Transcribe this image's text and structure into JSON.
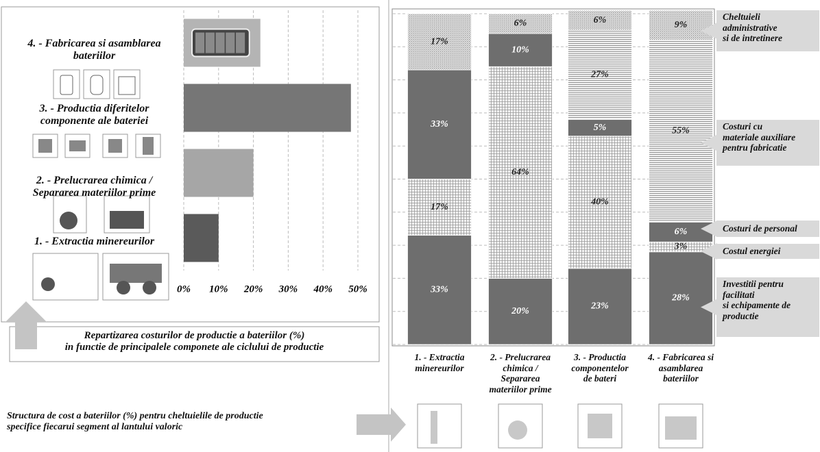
{
  "chart_data": [
    {
      "type": "hbar",
      "categories": [
        "1. - Extractia minereurilor",
        "2. - Prelucrarea chimica /\nSepararea materiilor prime",
        "3. - Productia diferitelor\ncomponente ale bateriei",
        "4. - Fabricarea si asamblarea\nbateriilor"
      ],
      "values": [
        10,
        20,
        48,
        22
      ],
      "colors": [
        "#5a5a5a",
        "#a6a6a6",
        "#767676",
        "#b4b4b4"
      ],
      "xlim": [
        0,
        50
      ],
      "xticks": [
        {
          "value": 0,
          "label": "0%"
        },
        {
          "value": 10,
          "label": "10%"
        },
        {
          "value": 20,
          "label": "20%"
        },
        {
          "value": 30,
          "label": "30%"
        },
        {
          "value": 40,
          "label": "40%"
        },
        {
          "value": 50,
          "label": "50%"
        }
      ],
      "grid": true,
      "caption": "Repartizarea costurilor de productie a bateriilor (%)\nin functie de principalele componete ale ciclului de productie"
    },
    {
      "type": "stacked_bar",
      "categories": [
        "1. - Extractia\nminereurilor",
        "2. - Prelucrarea\nchimica /\nSepararea\nmateriilor prime",
        "3. - Productia\ncomponentelor\nde bateri",
        "4. - Fabricarea si\nasamblarea\nbateriilor"
      ],
      "series": [
        {
          "name": "Investitii pentru\nfacilitati\nsi echipamente de\nproductie",
          "color": "#6e6e6e",
          "pattern": "solid",
          "values": [
            33,
            20,
            23,
            28
          ],
          "value_labels": [
            "33%",
            "20%",
            "23%",
            "28%"
          ]
        },
        {
          "name": "Costul energiei",
          "color": "#9a9a9a",
          "pattern": "grid",
          "values": [
            17,
            64,
            40,
            3
          ],
          "value_labels": [
            "17%",
            "64%",
            "40%",
            "3%"
          ]
        },
        {
          "name": "Costuri de personal",
          "color": "#6e6e6e",
          "pattern": "solid",
          "values": [
            33,
            10,
            5,
            6
          ],
          "value_labels": [
            "33%",
            "10%",
            "5%",
            "6%"
          ]
        },
        {
          "name": "Costuri cu\nmateriale auxiliare\npentru fabricatie",
          "color": "#8a8a8a",
          "pattern": "lines",
          "values": [
            null,
            null,
            27,
            55
          ],
          "value_labels": [
            null,
            null,
            "27%",
            "55%"
          ]
        },
        {
          "name": "Cheltuieli\nadministrative\nsi de intretinere",
          "color": "#9a9a9a",
          "pattern": "dots",
          "values": [
            17,
            6,
            6,
            9
          ],
          "value_labels": [
            "17%",
            "6%",
            "6%",
            "9%"
          ]
        }
      ],
      "ylim": [
        0,
        100
      ],
      "yticks": [
        0,
        10,
        20,
        30,
        40,
        50,
        60,
        70,
        80,
        90,
        100
      ],
      "grid": true,
      "caption": "Structura de cost a bateriilor (%) pentru cheltuielile de productie\nspecifice fiecarui segment al lantului valoric"
    }
  ]
}
